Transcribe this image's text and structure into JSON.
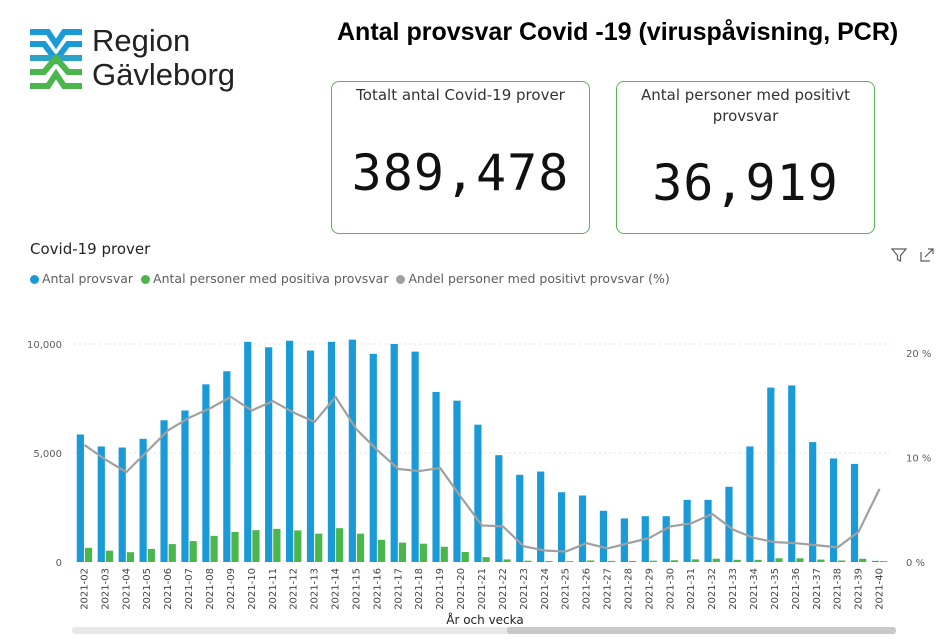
{
  "logo": {
    "line1": "Region",
    "line2": "Gävleborg",
    "icon": "region-gavleborg-logo-icon"
  },
  "page_title": "Antal provsvar Covid -19 (viruspåvisning, PCR)",
  "cards": [
    {
      "label": "Totalt antal Covid-19 prover",
      "value": "389,478"
    },
    {
      "label": "Antal personer med positivt provsvar",
      "value": "36,919"
    }
  ],
  "colors": {
    "blue": "#1a9bd7",
    "green": "#4bb64b",
    "gray": "#a0a0a0",
    "card_border": "#59b35a"
  },
  "toolbar": {
    "filter_icon": "filter-icon",
    "focus_icon": "focus-mode-icon"
  },
  "chart_data": {
    "type": "bar",
    "title": "Covid-19 prover",
    "xlabel": "År och vecka",
    "ylabel": "",
    "y2label": "",
    "legend_position": "top-left",
    "ylim": [
      0,
      10000
    ],
    "y2lim": [
      0,
      20
    ],
    "yticks": [
      "0",
      "5,000",
      "10,000"
    ],
    "y2ticks": [
      "0 %",
      "10 %",
      "20 %"
    ],
    "grid": true,
    "categories": [
      "2021-02",
      "2021-03",
      "2021-04",
      "2021-05",
      "2021-06",
      "2021-07",
      "2021-08",
      "2021-09",
      "2021-10",
      "2021-11",
      "2021-12",
      "2021-13",
      "2021-14",
      "2021-15",
      "2021-16",
      "2021-17",
      "2021-18",
      "2021-19",
      "2021-20",
      "2021-21",
      "2021-22",
      "2021-23",
      "2021-24",
      "2021-25",
      "2021-26",
      "2021-27",
      "2021-28",
      "2021-29",
      "2021-30",
      "2021-31",
      "2021-32",
      "2021-33",
      "2021-34",
      "2021-35",
      "2021-36",
      "2021-37",
      "2021-38",
      "2021-39",
      "2021-40"
    ],
    "series": [
      {
        "name": "Antal provsvar",
        "type": "bar",
        "axis": "left",
        "values": [
          5850,
          5300,
          5250,
          5650,
          6500,
          6950,
          8150,
          8750,
          10100,
          9850,
          10150,
          9700,
          10100,
          10200,
          9550,
          10000,
          9650,
          7800,
          7400,
          6300,
          4900,
          4000,
          4150,
          3200,
          3050,
          2350,
          2000,
          2100,
          2100,
          2850,
          2850,
          3450,
          5300,
          8000,
          8100,
          5500,
          4750,
          4500,
          50
        ]
      },
      {
        "name": "Antal personer med positiva provsvar",
        "type": "bar",
        "axis": "left",
        "values": [
          650,
          520,
          450,
          600,
          820,
          960,
          1200,
          1380,
          1460,
          1520,
          1450,
          1300,
          1550,
          1300,
          1020,
          890,
          840,
          700,
          460,
          220,
          120,
          60,
          45,
          40,
          70,
          50,
          50,
          60,
          80,
          120,
          150,
          100,
          100,
          170,
          170,
          110,
          70,
          150,
          40
        ]
      },
      {
        "name": "Andel personer med positivt provsvar  (%)",
        "type": "line",
        "axis": "right",
        "values": [
          11.2,
          9.8,
          8.6,
          10.6,
          12.6,
          13.8,
          14.7,
          15.8,
          14.5,
          15.4,
          14.3,
          13.4,
          15.8,
          12.7,
          10.7,
          8.9,
          8.7,
          9.0,
          6.2,
          3.5,
          3.4,
          1.5,
          1.1,
          1.0,
          1.8,
          1.3,
          1.8,
          2.3,
          3.4,
          3.7,
          4.6,
          3.1,
          2.3,
          1.9,
          1.8,
          1.6,
          1.4,
          2.9,
          7.0
        ]
      }
    ]
  }
}
